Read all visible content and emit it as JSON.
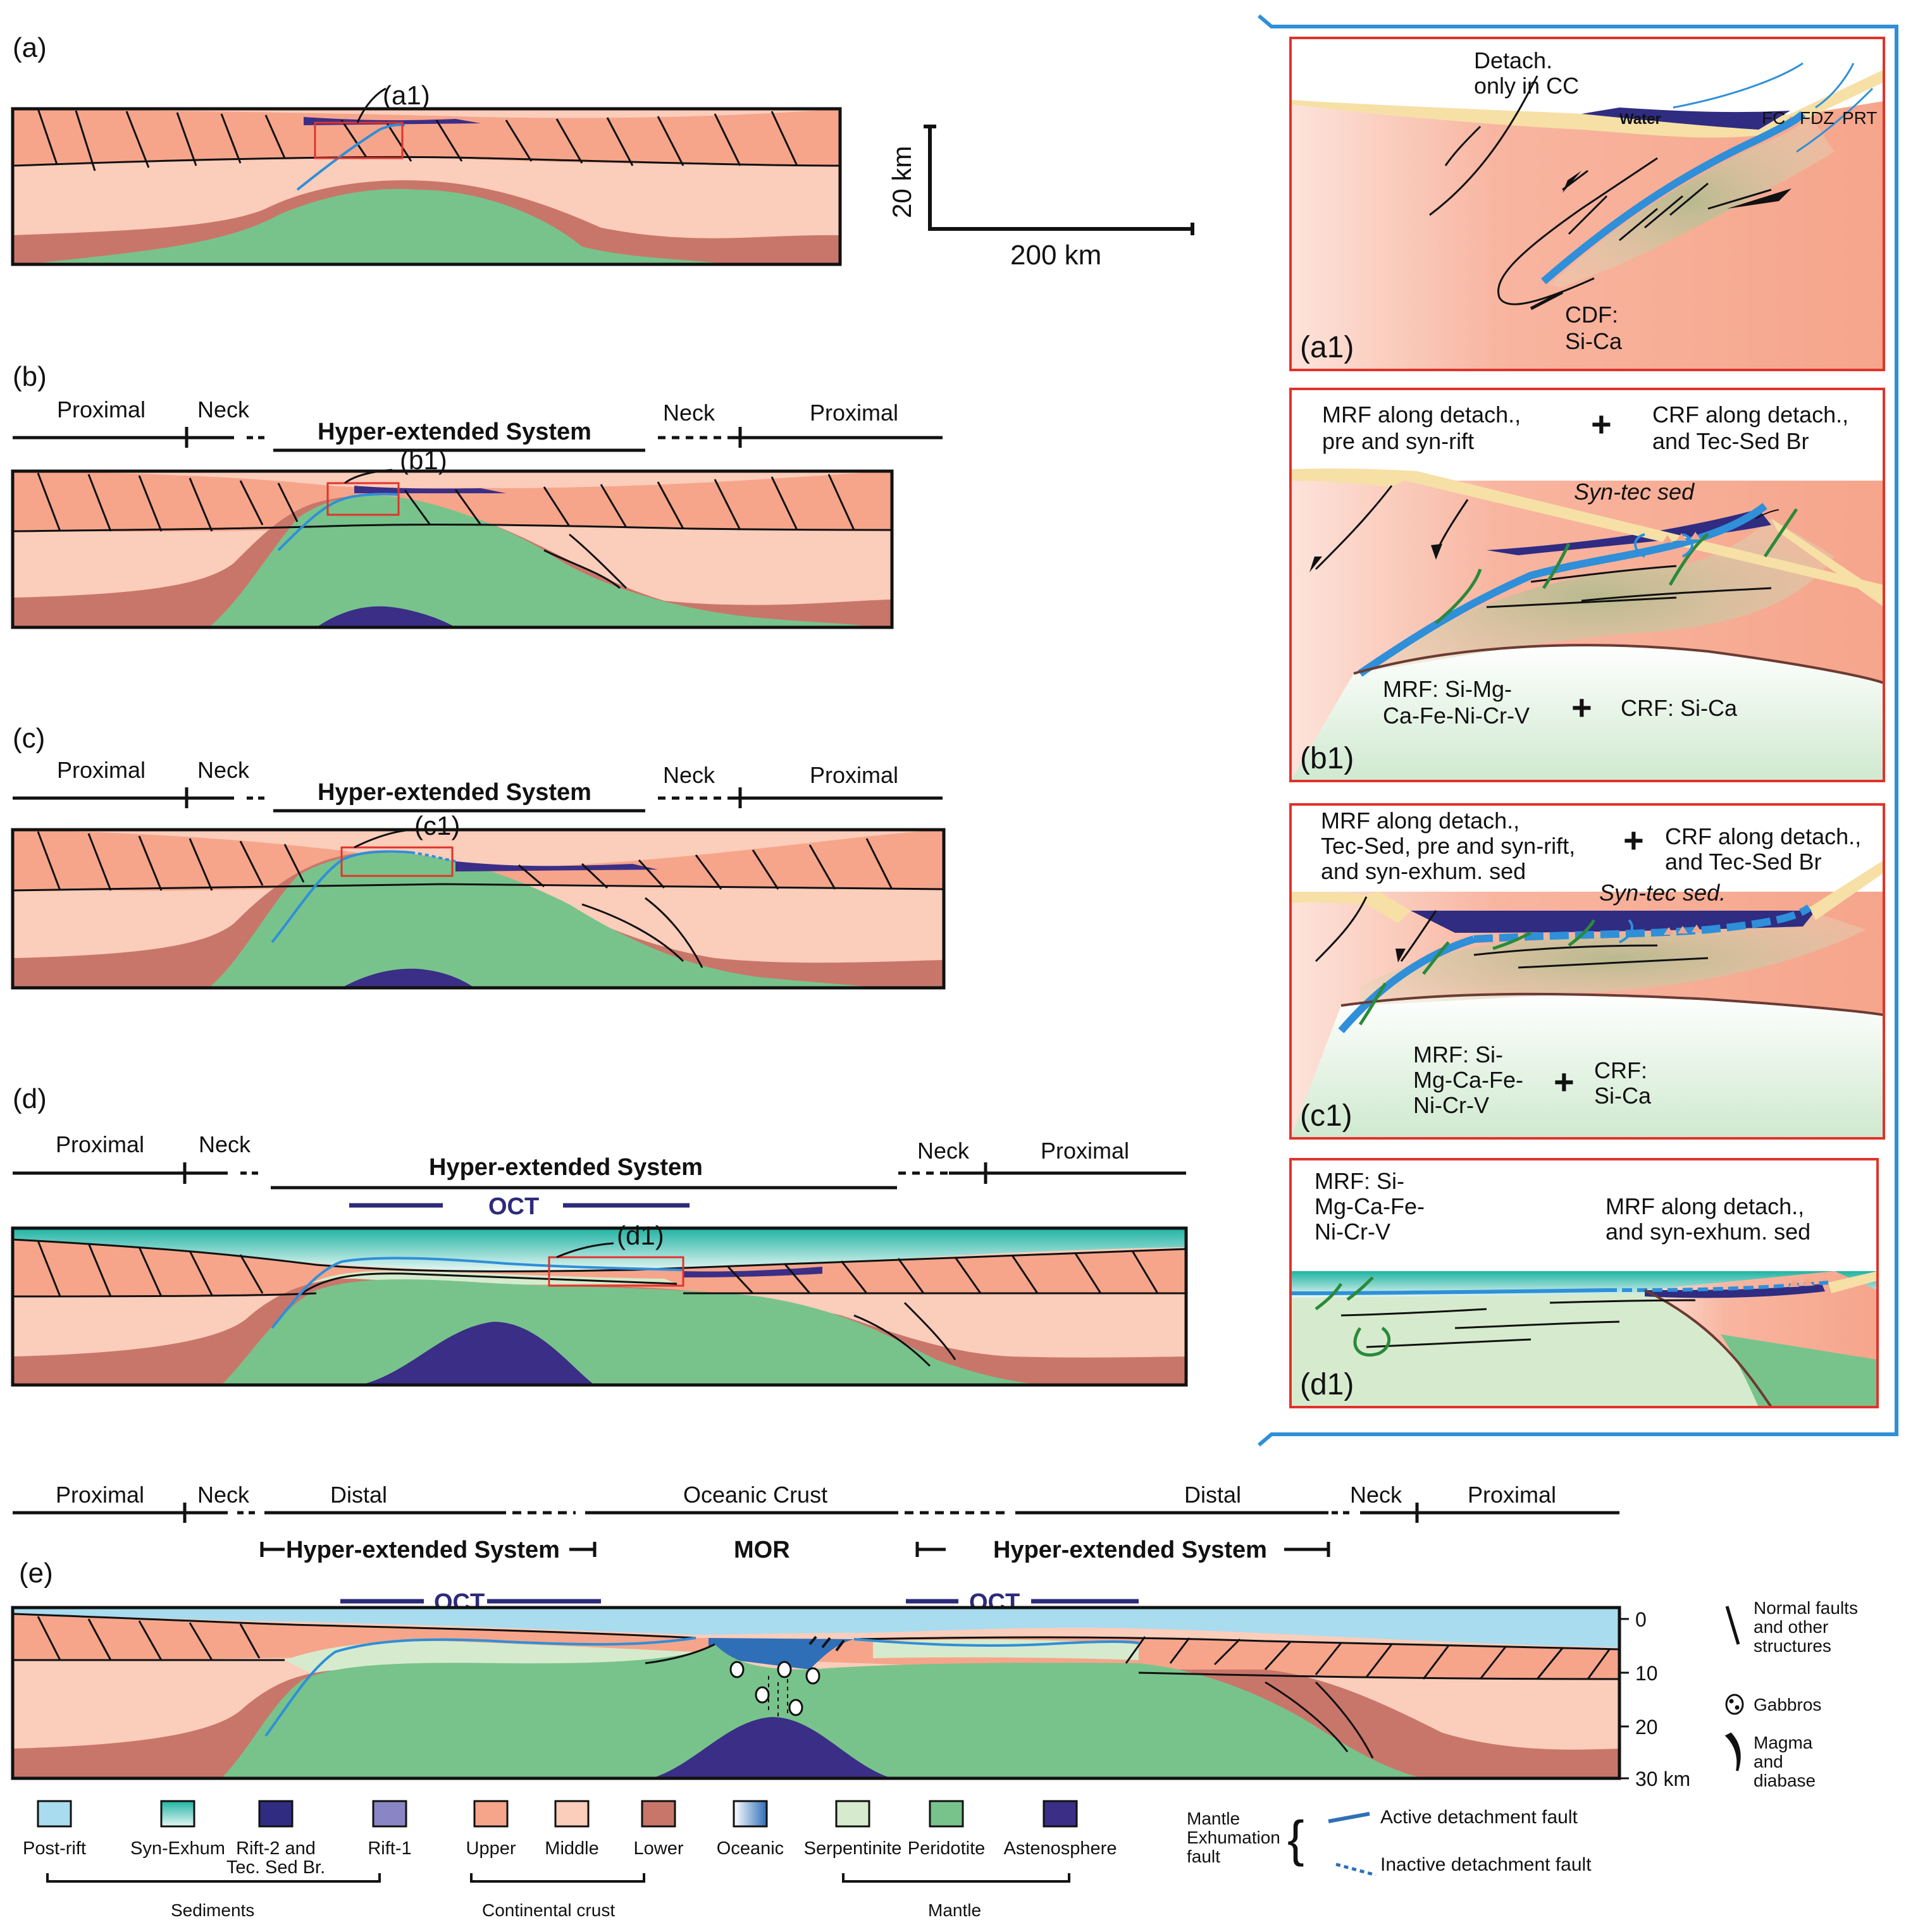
{
  "panels": {
    "a": {
      "label": "(a)",
      "zoom": "(a1)"
    },
    "b": {
      "label": "(b)",
      "zoom": "(b1)"
    },
    "c": {
      "label": "(c)",
      "zoom": "(c1)"
    },
    "d": {
      "label": "(d)",
      "zoom": "(d1)"
    },
    "e": {
      "label": "(e)"
    }
  },
  "scale": {
    "vertical": "20 km",
    "horizontal": "200 km"
  },
  "domains": {
    "proximal": "Proximal",
    "neck": "Neck",
    "hyper": "Hyper-extended System",
    "distal": "Distal",
    "oceanic_crust": "Oceanic Crust",
    "mor": "MOR",
    "oct": "OCT"
  },
  "depth_axis": [
    "0",
    "10",
    "20",
    "30 km"
  ],
  "zooms": {
    "a1": {
      "label": "(a1)",
      "detach_1": "Detach.",
      "detach_2": "only in CC",
      "water": "Water",
      "fc": "FC",
      "fdz": "FDZ",
      "prt": "PRT",
      "cdf_1": "CDF:",
      "cdf_2": "Si-Ca"
    },
    "b1": {
      "label": "(b1)",
      "top_left_1": "MRF along detach.,",
      "top_left_2": "pre and syn-rift",
      "plus": "+",
      "top_right_1": "CRF along detach.,",
      "top_right_2": "and Tec-Sed Br",
      "syn_tec": "Syn-tec sed",
      "bot_left_1": "MRF: Si-Mg-",
      "bot_left_2": "Ca-Fe-Ni-Cr-V",
      "bot_right": "CRF: Si-Ca"
    },
    "c1": {
      "label": "(c1)",
      "top_left_1": "MRF along detach.,",
      "top_left_2": "Tec-Sed, pre and syn-rift,",
      "top_left_3": "and syn-exhum. sed",
      "plus": "+",
      "top_right_1": "CRF along detach.,",
      "top_right_2": "and Tec-Sed Br",
      "syn_tec": "Syn-tec sed.",
      "bot_left_1": "MRF: Si-",
      "bot_left_2": "Mg-Ca-Fe-",
      "bot_left_3": "Ni-Cr-V",
      "bot_right_1": "CRF:",
      "bot_right_2": "Si-Ca"
    },
    "d1": {
      "label": "(d1)",
      "left_1": "MRF: Si-",
      "left_2": "Mg-Ca-Fe-",
      "left_3": "Ni-Cr-V",
      "right_1": "MRF along detach.,",
      "right_2": "and syn-exhum. sed"
    }
  },
  "side_legend": {
    "normal_1": "Normal faults",
    "normal_2": "and other",
    "normal_3": "structures",
    "gabbros": "Gabbros",
    "magma_1": "Magma",
    "magma_2": "and",
    "magma_3": "diabase"
  },
  "legend": {
    "items": [
      {
        "label": "Post-rift",
        "color": "#a9dcef"
      },
      {
        "label": "Syn-Exhum",
        "color": "#2bb6a6"
      },
      {
        "label": "Rift-2 and",
        "label2": "Tec. Sed Br.",
        "color": "#2f2c82"
      },
      {
        "label": "Rift-1",
        "color": "#8a86c5"
      },
      {
        "label": "Upper",
        "color": "#f6a58b"
      },
      {
        "label": "Middle",
        "color": "#fbcdbb"
      },
      {
        "label": "Lower",
        "color": "#c9766a"
      },
      {
        "label": "Oceanic",
        "color": "#2f6fb8"
      },
      {
        "label": "Serpentinite",
        "color": "#d6ebcd"
      },
      {
        "label": "Peridotite",
        "color": "#78c38c"
      },
      {
        "label": "Astenosphere",
        "color": "#3b2e86"
      }
    ],
    "groups": {
      "sediments": "Sediments",
      "continental": "Continental crust",
      "mantle": "Mantle"
    },
    "fault_title_1": "Mantle",
    "fault_title_2": "Exhumation",
    "fault_title_3": "fault",
    "active": "Active detachment fault",
    "inactive": "Inactive detachment fault"
  }
}
